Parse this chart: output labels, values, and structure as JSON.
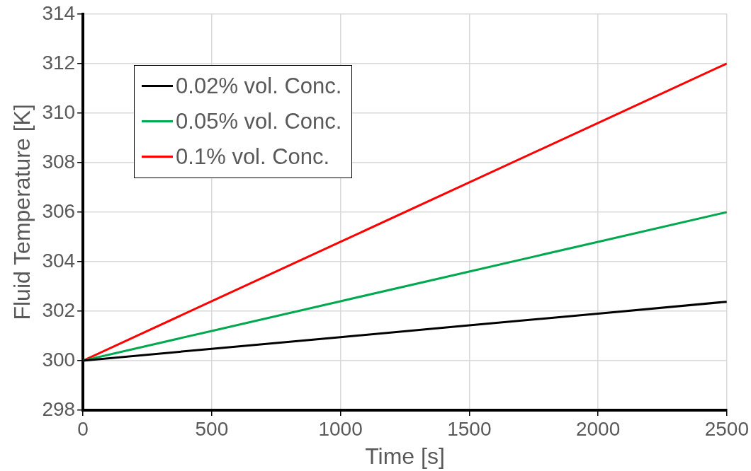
{
  "chart_data": {
    "type": "line",
    "xlabel": "Time [s]",
    "ylabel": "Fluid Temperature [K]",
    "x": [
      0,
      500,
      1000,
      1500,
      2000,
      2500
    ],
    "series": [
      {
        "name": "0.02% vol. Conc.",
        "color": "#000000",
        "values": [
          300,
          300.48,
          300.95,
          301.43,
          301.9,
          302.38
        ]
      },
      {
        "name": "0.05% vol. Conc.",
        "color": "#00a84f",
        "values": [
          300,
          301.2,
          302.4,
          303.6,
          304.8,
          306
        ]
      },
      {
        "name": "0.1% vol. Conc.",
        "color": "#ff0000",
        "values": [
          300,
          302.4,
          304.8,
          307.2,
          309.6,
          312
        ]
      }
    ],
    "xlim": [
      0,
      2500
    ],
    "xticks": [
      0,
      500,
      1000,
      1500,
      2000,
      2500
    ],
    "ylim": [
      298,
      314
    ],
    "yticks": [
      298,
      300,
      302,
      304,
      306,
      308,
      310,
      312,
      314
    ],
    "grid": true,
    "legend": "top left",
    "marker": "none",
    "line_style": "solid"
  }
}
